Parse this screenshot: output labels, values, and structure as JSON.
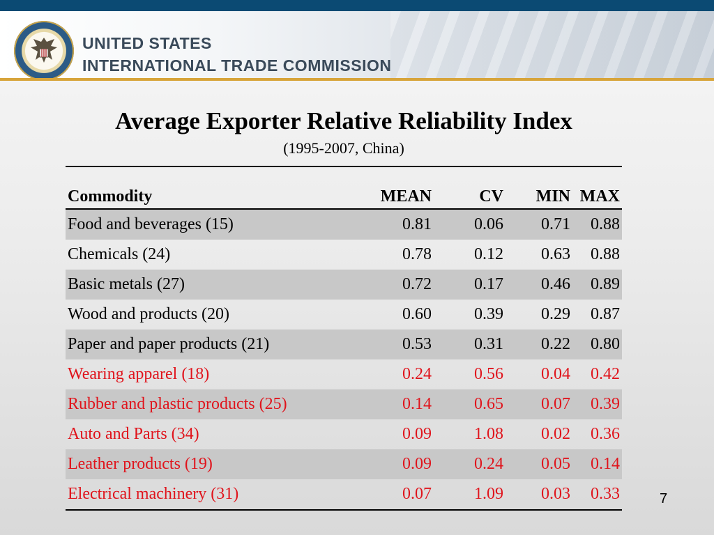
{
  "header": {
    "org_line1": "UNITED STATES",
    "org_line2": "INTERNATIONAL TRADE COMMISSION",
    "logo": "usitc-seal",
    "bar_color": "#0b4a73",
    "accent_color": "#d7a43a"
  },
  "title": "Average Exporter Relative Reliability Index",
  "subtitle": "(1995-2007, China)",
  "table": {
    "headers": [
      "Commodity",
      "MEAN",
      "CV",
      "MIN",
      "MAX"
    ],
    "highlight_color": "#e0141c",
    "rows": [
      {
        "name": "Food and beverages (15)",
        "mean": "0.81",
        "cv": "0.06",
        "min": "0.71",
        "max": "0.88",
        "shaded": true,
        "highlight": false
      },
      {
        "name": "Chemicals (24)",
        "mean": "0.78",
        "cv": "0.12",
        "min": "0.63",
        "max": "0.88",
        "shaded": false,
        "highlight": false
      },
      {
        "name": "Basic metals (27)",
        "mean": "0.72",
        "cv": "0.17",
        "min": "0.46",
        "max": "0.89",
        "shaded": true,
        "highlight": false
      },
      {
        "name": "Wood and products (20)",
        "mean": "0.60",
        "cv": "0.39",
        "min": "0.29",
        "max": "0.87",
        "shaded": false,
        "highlight": false
      },
      {
        "name": "Paper and paper products (21)",
        "mean": "0.53",
        "cv": "0.31",
        "min": "0.22",
        "max": "0.80",
        "shaded": true,
        "highlight": false
      },
      {
        "name": "Wearing apparel (18)",
        "mean": "0.24",
        "cv": "0.56",
        "min": "0.04",
        "max": "0.42",
        "shaded": false,
        "highlight": true
      },
      {
        "name": "Rubber and plastic products (25)",
        "mean": "0.14",
        "cv": "0.65",
        "min": "0.07",
        "max": "0.39",
        "shaded": true,
        "highlight": true
      },
      {
        "name": "Auto and Parts (34)",
        "mean": "0.09",
        "cv": "1.08",
        "min": "0.02",
        "max": "0.36",
        "shaded": false,
        "highlight": true
      },
      {
        "name": "Leather products (19)",
        "mean": "0.09",
        "cv": "0.24",
        "min": "0.05",
        "max": "0.14",
        "shaded": true,
        "highlight": true
      },
      {
        "name": "Electrical machinery (31)",
        "mean": "0.07",
        "cv": "1.09",
        "min": "0.03",
        "max": "0.33",
        "shaded": false,
        "highlight": true
      }
    ]
  },
  "page_number": "7"
}
